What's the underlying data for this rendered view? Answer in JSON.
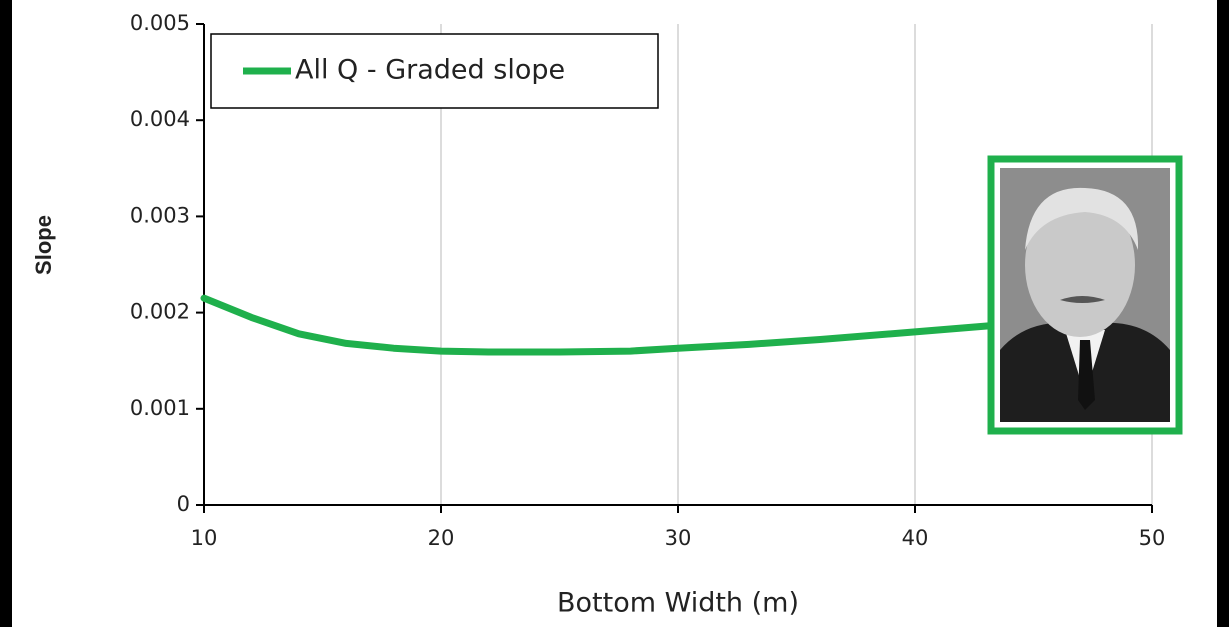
{
  "chart_data": {
    "type": "line",
    "x_label": "Bottom Width (m)",
    "y_label": "Slope",
    "x": [
      10,
      12,
      14,
      16,
      18,
      20,
      22,
      25,
      28,
      30,
      33,
      36,
      40,
      42,
      44
    ],
    "series": [
      {
        "name": "All Q - Graded slope",
        "color": "#1fb04c",
        "values": [
          0.00215,
          0.00195,
          0.00178,
          0.00168,
          0.00163,
          0.0016,
          0.00159,
          0.00159,
          0.0016,
          0.00163,
          0.00167,
          0.00172,
          0.0018,
          0.00184,
          0.00188
        ]
      }
    ],
    "xlim": [
      10,
      50
    ],
    "xticks": [
      10,
      20,
      30,
      40,
      50
    ],
    "ylim": [
      0,
      0.005
    ],
    "yticks": [
      0,
      0.001,
      0.002,
      0.003,
      0.004,
      0.005
    ],
    "grid": "x",
    "legend": "upper left"
  }
}
